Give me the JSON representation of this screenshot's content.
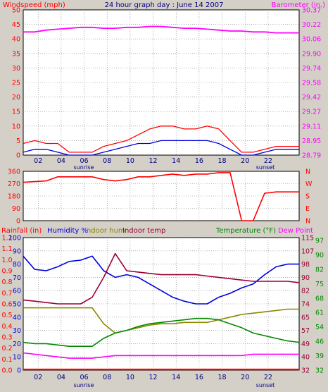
{
  "title": "24 hour graph day : June 14 2007",
  "colors": {
    "red": "#ff0000",
    "blue": "#0000dd",
    "magenta": "#ff00ff",
    "olive": "#888800",
    "maroon": "#990033",
    "green": "#008800",
    "grid": "#808080",
    "bg": "#d4d0c8"
  },
  "chart_data": [
    {
      "type": "line",
      "title": "24 hour graph day : June 14 2007",
      "ylabel_left": "Windspeed (mph)",
      "ylabel_right": "Barometer (in.)",
      "x_ticks": [
        "02",
        "04",
        "06",
        "08",
        "10",
        "12",
        "14",
        "16",
        "18",
        "20",
        "22"
      ],
      "x_annotations": [
        "sunrise",
        "sunset"
      ],
      "ylim_left": [
        0,
        50
      ],
      "y_ticks_left": [
        "0",
        "5",
        "10",
        "15",
        "20",
        "25",
        "30",
        "35",
        "40",
        "45",
        "50"
      ],
      "ylim_right": [
        28.79,
        30.37
      ],
      "y_ticks_right": [
        "28.79",
        "28.95",
        "29.11",
        "29.27",
        "29.42",
        "29.58",
        "29.74",
        "29.90",
        "30.06",
        "30.22",
        "30.37"
      ],
      "x": [
        0,
        1,
        2,
        3,
        4,
        5,
        6,
        7,
        8,
        9,
        10,
        11,
        12,
        13,
        14,
        15,
        16,
        17,
        18,
        19,
        20,
        21,
        22,
        23,
        24
      ],
      "series": [
        {
          "name": "Windspeed (mph)",
          "color": "#ff0000",
          "axis": "left",
          "values": [
            4,
            5,
            4,
            4,
            1,
            1,
            1,
            3,
            4,
            5,
            7,
            9,
            10,
            10,
            9,
            9,
            10,
            9,
            5,
            1,
            1,
            2,
            3,
            3,
            3
          ]
        },
        {
          "name": "Windspeed (mph)",
          "color": "#0000dd",
          "axis": "left",
          "values": [
            1,
            2,
            2,
            1,
            0,
            0,
            0,
            1,
            2,
            3,
            4,
            4,
            5,
            5,
            5,
            5,
            5,
            4,
            2,
            0,
            0,
            1,
            2,
            2,
            2
          ]
        },
        {
          "name": "Barometer (in.)",
          "color": "#ff00ff",
          "axis": "right",
          "values": [
            30.13,
            30.13,
            30.15,
            30.16,
            30.17,
            30.18,
            30.18,
            30.17,
            30.17,
            30.18,
            30.18,
            30.19,
            30.19,
            30.18,
            30.17,
            30.17,
            30.16,
            30.15,
            30.14,
            30.14,
            30.13,
            30.13,
            30.12,
            30.12,
            30.12
          ]
        }
      ]
    },
    {
      "type": "line",
      "ylabel_left": "",
      "ylim_left": [
        0,
        360
      ],
      "y_ticks_left": [
        "360",
        "270",
        "180",
        "90",
        "0"
      ],
      "y_ticks_right": [
        "N",
        "W",
        "S",
        "E",
        "N"
      ],
      "x": [
        0,
        1,
        2,
        3,
        4,
        5,
        6,
        7,
        8,
        9,
        10,
        11,
        12,
        13,
        14,
        15,
        16,
        17,
        18,
        19,
        20,
        21,
        22,
        23,
        24
      ],
      "series": [
        {
          "name": "Wind direction",
          "color": "#ff0000",
          "values": [
            280,
            285,
            290,
            320,
            320,
            320,
            320,
            300,
            290,
            300,
            320,
            320,
            330,
            340,
            330,
            340,
            340,
            350,
            350,
            0,
            0,
            200,
            210,
            210,
            210
          ]
        }
      ]
    },
    {
      "type": "line",
      "labels": [
        "Rainfall (in)",
        "Humidity %",
        "Indoor hum",
        "Indoor temp",
        "Temperature (°F)",
        "Dew Point"
      ],
      "y_ticks_rain": [
        "0.0",
        "0.1",
        "0.2",
        "0.3",
        "0.4",
        "0.5",
        "0.6",
        "0.7",
        "0.8",
        "0.9",
        "1.0",
        "1.1",
        "1.2"
      ],
      "y_ticks_humidity": [
        "0",
        "10",
        "20",
        "30",
        "40",
        "50",
        "60",
        "70",
        "80",
        "90",
        "100"
      ],
      "y_ticks_temp_inner": [
        "32",
        "40",
        "49",
        "57",
        "65",
        "74",
        "82",
        "90",
        "98",
        "107",
        "115"
      ],
      "y_ticks_temp_outer": [
        "32",
        "39",
        "46",
        "54",
        "61",
        "68",
        "75",
        "82",
        "90",
        "97"
      ],
      "ylim_humidity": [
        0,
        100
      ],
      "ylim_temperature": [
        32,
        115
      ],
      "x_ticks": [
        "02",
        "04",
        "06",
        "08",
        "10",
        "12",
        "14",
        "16",
        "18",
        "20",
        "22"
      ],
      "x_annotations": [
        "sunrise",
        "sunset"
      ],
      "x": [
        0,
        1,
        2,
        3,
        4,
        5,
        6,
        7,
        8,
        9,
        10,
        11,
        12,
        13,
        14,
        15,
        16,
        17,
        18,
        19,
        20,
        21,
        22,
        23,
        24
      ],
      "series": [
        {
          "name": "Humidity %",
          "color": "#0000dd",
          "axis": "humidity",
          "values": [
            86,
            76,
            75,
            78,
            82,
            83,
            86,
            75,
            70,
            72,
            70,
            65,
            60,
            55,
            52,
            50,
            50,
            55,
            58,
            62,
            65,
            72,
            78,
            80,
            80
          ]
        },
        {
          "name": "Indoor hum",
          "color": "#888800",
          "axis": "humidity",
          "values": [
            47,
            47,
            47,
            47,
            47,
            47,
            47,
            35,
            28,
            30,
            32,
            34,
            35,
            35,
            36,
            36,
            36,
            38,
            40,
            42,
            43,
            44,
            45,
            46,
            46
          ]
        },
        {
          "name": "Indoor temp",
          "color": "#990033",
          "axis": "humidity",
          "values": [
            53,
            52,
            51,
            50,
            50,
            50,
            55,
            70,
            88,
            75,
            74,
            73,
            72,
            72,
            72,
            72,
            71,
            70,
            69,
            68,
            67,
            67,
            67,
            67,
            66
          ]
        },
        {
          "name": "Temperature (°F)",
          "color": "#008800",
          "axis": "humidity",
          "values": [
            21,
            20,
            20,
            19,
            18,
            18,
            18,
            24,
            28,
            30,
            33,
            35,
            36,
            37,
            38,
            39,
            39,
            38,
            35,
            32,
            28,
            26,
            24,
            22,
            21
          ]
        },
        {
          "name": "Dew Point",
          "color": "#ff00ff",
          "axis": "humidity",
          "values": [
            13,
            12,
            11,
            10,
            9,
            9,
            9,
            10,
            11,
            11,
            11,
            11,
            11,
            11,
            11,
            11,
            11,
            11,
            11,
            11,
            12,
            12,
            12,
            12,
            12
          ]
        },
        {
          "name": "Rainfall (in)",
          "color": "#ff0000",
          "axis": "humidity",
          "values": [
            0,
            0,
            0,
            0,
            0,
            0,
            0,
            0,
            0,
            0,
            0,
            0,
            0,
            0,
            0,
            0,
            0,
            0,
            0,
            0,
            0,
            0,
            0,
            0,
            0
          ]
        }
      ]
    }
  ]
}
